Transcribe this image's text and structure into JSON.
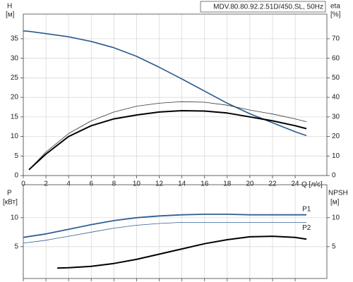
{
  "chart_data": [
    {
      "type": "line",
      "title": "MDV.80.80.92.2.51D/450.SL, 50Hz",
      "y_label": "H",
      "y_unit": "[м]",
      "y2_label": "eta",
      "y2_unit": "[%]",
      "x_label": "Q [л/с]",
      "x": [
        0,
        0.5,
        2,
        4,
        6,
        8,
        10,
        12,
        14,
        16,
        18,
        20,
        22,
        24,
        25
      ],
      "xlim": [
        0,
        26.8
      ],
      "xticks": [
        0,
        2,
        4,
        6,
        8,
        10,
        12,
        14,
        16,
        18,
        20,
        22,
        24
      ],
      "xtick_labels": true,
      "ylim": [
        0,
        41.3
      ],
      "yticks": [
        0,
        5,
        10,
        15,
        20,
        25,
        30,
        35
      ],
      "y2lim": [
        0,
        82.6
      ],
      "y2ticks": [
        0,
        10,
        20,
        30,
        40,
        50,
        60,
        70
      ],
      "grid": true,
      "series": [
        {
          "color": "#2a5a8c",
          "width": 1.6,
          "values": [
            37,
            36.9,
            36.3,
            35.5,
            34.3,
            32.7,
            30.5,
            27.7,
            24.7,
            21.6,
            18.5,
            15.8,
            13.5,
            11.2,
            10.2
          ]
        },
        {
          "color": "#333333",
          "width": 0.8,
          "axis": "y2",
          "values": [
            null,
            3,
            12,
            21.5,
            28,
            32.5,
            35.5,
            37,
            37.8,
            37.5,
            36,
            33.5,
            31.5,
            29,
            27.5
          ]
        },
        {
          "color": "#000000",
          "width": 2,
          "axis": "y2",
          "values": [
            null,
            3,
            11,
            20,
            25.5,
            29,
            31,
            32.5,
            33.2,
            33,
            32,
            30,
            28,
            25.5,
            24
          ]
        }
      ]
    },
    {
      "type": "line",
      "y_label": "P",
      "y_unit": "[кВт]",
      "y2_label": "NPSH",
      "y2_unit": "[м]",
      "x": [
        0,
        2,
        3,
        4,
        6,
        8,
        10,
        12,
        14,
        16,
        18,
        20,
        22,
        24,
        25
      ],
      "xlim": [
        0,
        26.8
      ],
      "xticks": [
        0,
        2,
        4,
        6,
        8,
        10,
        12,
        14,
        16,
        18,
        20,
        22,
        24
      ],
      "xtick_labels": false,
      "ylim": [
        -0.5,
        15.7
      ],
      "yticks": [
        5,
        10
      ],
      "y2lim": [
        -0.5,
        15.7
      ],
      "y2ticks": [
        5,
        10
      ],
      "grid": true,
      "series": [
        {
          "name": "P1",
          "color": "#2f5f94",
          "width": 1.8,
          "values": [
            6.6,
            7.2,
            7.6,
            8,
            8.8,
            9.5,
            10,
            10.3,
            10.5,
            10.6,
            10.6,
            10.5,
            10.5,
            10.5,
            10.5
          ]
        },
        {
          "name": "P2",
          "color": "#2f5f94",
          "width": 0.8,
          "values": [
            5.6,
            6.1,
            6.45,
            6.8,
            7.5,
            8.2,
            8.7,
            9,
            9.2,
            9.2,
            9.2,
            9.2,
            9.2,
            9.2,
            9.2
          ]
        },
        {
          "color": "#000000",
          "width": 2,
          "axis": "y2",
          "values": [
            null,
            null,
            1.3,
            1.35,
            1.6,
            2.1,
            2.8,
            3.7,
            4.6,
            5.5,
            6.2,
            6.7,
            6.8,
            6.6,
            6.3
          ]
        }
      ]
    }
  ]
}
